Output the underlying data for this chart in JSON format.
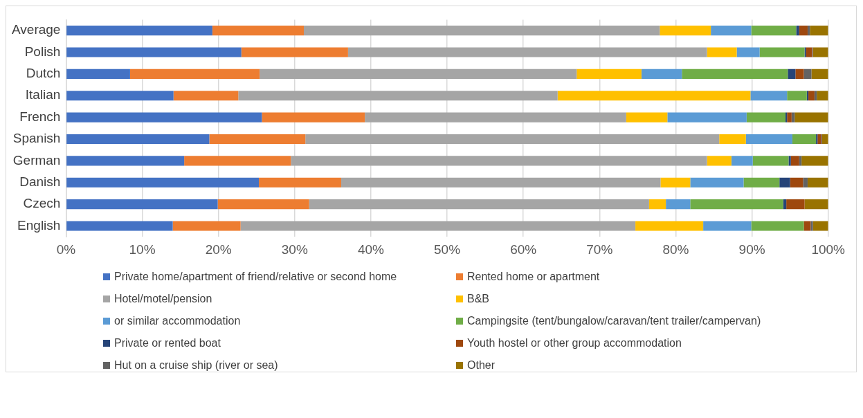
{
  "chart_data": {
    "type": "bar",
    "orientation": "horizontal",
    "stacked": true,
    "categories": [
      "Average",
      "Polish",
      "Dutch",
      "Italian",
      "French",
      "Spanish",
      "German",
      "Danish",
      "Czech",
      "English"
    ],
    "series": [
      {
        "name": "Private home/apartment of friend/relative or second home",
        "color": "#4472c4",
        "values": [
          19.2,
          23.0,
          8.4,
          14.1,
          25.7,
          18.8,
          15.5,
          25.3,
          19.9,
          14.0
        ]
      },
      {
        "name": "Rented home or apartment",
        "color": "#ed7d31",
        "values": [
          12.0,
          14.0,
          17.0,
          8.5,
          13.5,
          12.6,
          14.0,
          10.8,
          12.0,
          8.9
        ]
      },
      {
        "name": "Hotel/motel/pension",
        "color": "#a5a5a5",
        "values": [
          46.7,
          47.1,
          41.6,
          41.9,
          34.3,
          54.3,
          54.6,
          41.9,
          44.6,
          51.8
        ]
      },
      {
        "name": "B&B",
        "color": "#ffc000",
        "values": [
          6.7,
          3.9,
          8.5,
          25.3,
          5.4,
          3.5,
          3.2,
          3.9,
          2.2,
          8.9
        ]
      },
      {
        "name": "or similar accommodation",
        "color": "#5b9bd5",
        "values": [
          5.3,
          3.0,
          5.3,
          4.8,
          10.4,
          6.1,
          2.8,
          7.0,
          3.2,
          6.3
        ]
      },
      {
        "name": "Campingsite (tent/bungalow/caravan/tent trailer/campervan)",
        "color": "#70ad47",
        "values": [
          5.9,
          5.9,
          13.9,
          2.6,
          5.1,
          3.1,
          4.7,
          4.7,
          12.2,
          6.9
        ]
      },
      {
        "name": "Private or rented boat",
        "color": "#264478",
        "values": [
          0.4,
          0.2,
          1.0,
          0.2,
          0.2,
          0.2,
          0.3,
          1.4,
          0.4,
          0
        ]
      },
      {
        "name": "Youth hostel or other group accommodation",
        "color": "#9e480e",
        "values": [
          1.1,
          0.8,
          1.1,
          0.8,
          0.6,
          0.5,
          1.1,
          1.7,
          2.4,
          0.9
        ]
      },
      {
        "name": "Hut on a cruise ship (river or sea)",
        "color": "#636363",
        "values": [
          0.3,
          0.1,
          1.0,
          0.3,
          0.4,
          0.1,
          0.3,
          0.6,
          0,
          0.3
        ]
      },
      {
        "name": "Other",
        "color": "#997300",
        "values": [
          2.4,
          2.0,
          2.2,
          1.5,
          4.4,
          0.8,
          3.5,
          2.7,
          3.1,
          2.0
        ]
      }
    ],
    "xlim": [
      0,
      100
    ],
    "xticks": [
      {
        "value": 0,
        "label": "0%"
      },
      {
        "value": 10,
        "label": "10%"
      },
      {
        "value": 20,
        "label": "20%"
      },
      {
        "value": 30,
        "label": "30%"
      },
      {
        "value": 40,
        "label": "40%"
      },
      {
        "value": 50,
        "label": "50%"
      },
      {
        "value": 60,
        "label": "60%"
      },
      {
        "value": 70,
        "label": "70%"
      },
      {
        "value": 80,
        "label": "80%"
      },
      {
        "value": 90,
        "label": "90%"
      },
      {
        "value": 100,
        "label": "100%"
      }
    ],
    "grid": "x",
    "legend": "bottom"
  }
}
